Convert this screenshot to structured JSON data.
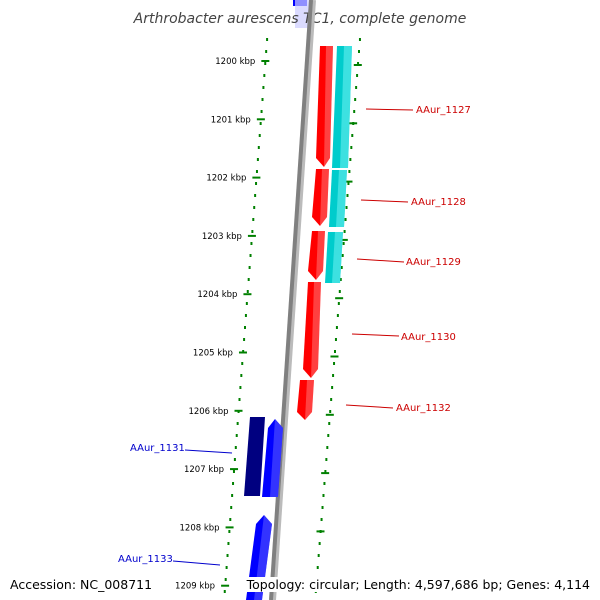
{
  "title": "Arthrobacter aurescens TC1, complete genome",
  "footer": {
    "accession": "Accession: NC_008711",
    "topology": "Topology: circular; Length: 4,597,686 bp; Genes: 4,114"
  },
  "ticks": [
    "1200 kbp",
    "1201 kbp",
    "1202 kbp",
    "1203 kbp",
    "1204 kbp",
    "1205 kbp",
    "1206 kbp",
    "1207 kbp",
    "1208 kbp",
    "1209 kbp"
  ],
  "gene_labels": [
    {
      "name": "AAur_1127",
      "color": "#cc0000"
    },
    {
      "name": "AAur_1128",
      "color": "#cc0000"
    },
    {
      "name": "AAur_1129",
      "color": "#cc0000"
    },
    {
      "name": "AAur_1130",
      "color": "#cc0000"
    },
    {
      "name": "AAur_1132",
      "color": "#cc0000"
    },
    {
      "name": "AAur_1131",
      "color": "#0000cc"
    },
    {
      "name": "AAur_1133",
      "color": "#0000cc"
    }
  ],
  "colors": {
    "forward_gene": "#ff0000",
    "reverse_gene": "#0000ff",
    "dark_reverse_gene": "#000080",
    "cds_feature": "#00cccc",
    "backbone": "#808080",
    "tick_green": "#008000"
  }
}
